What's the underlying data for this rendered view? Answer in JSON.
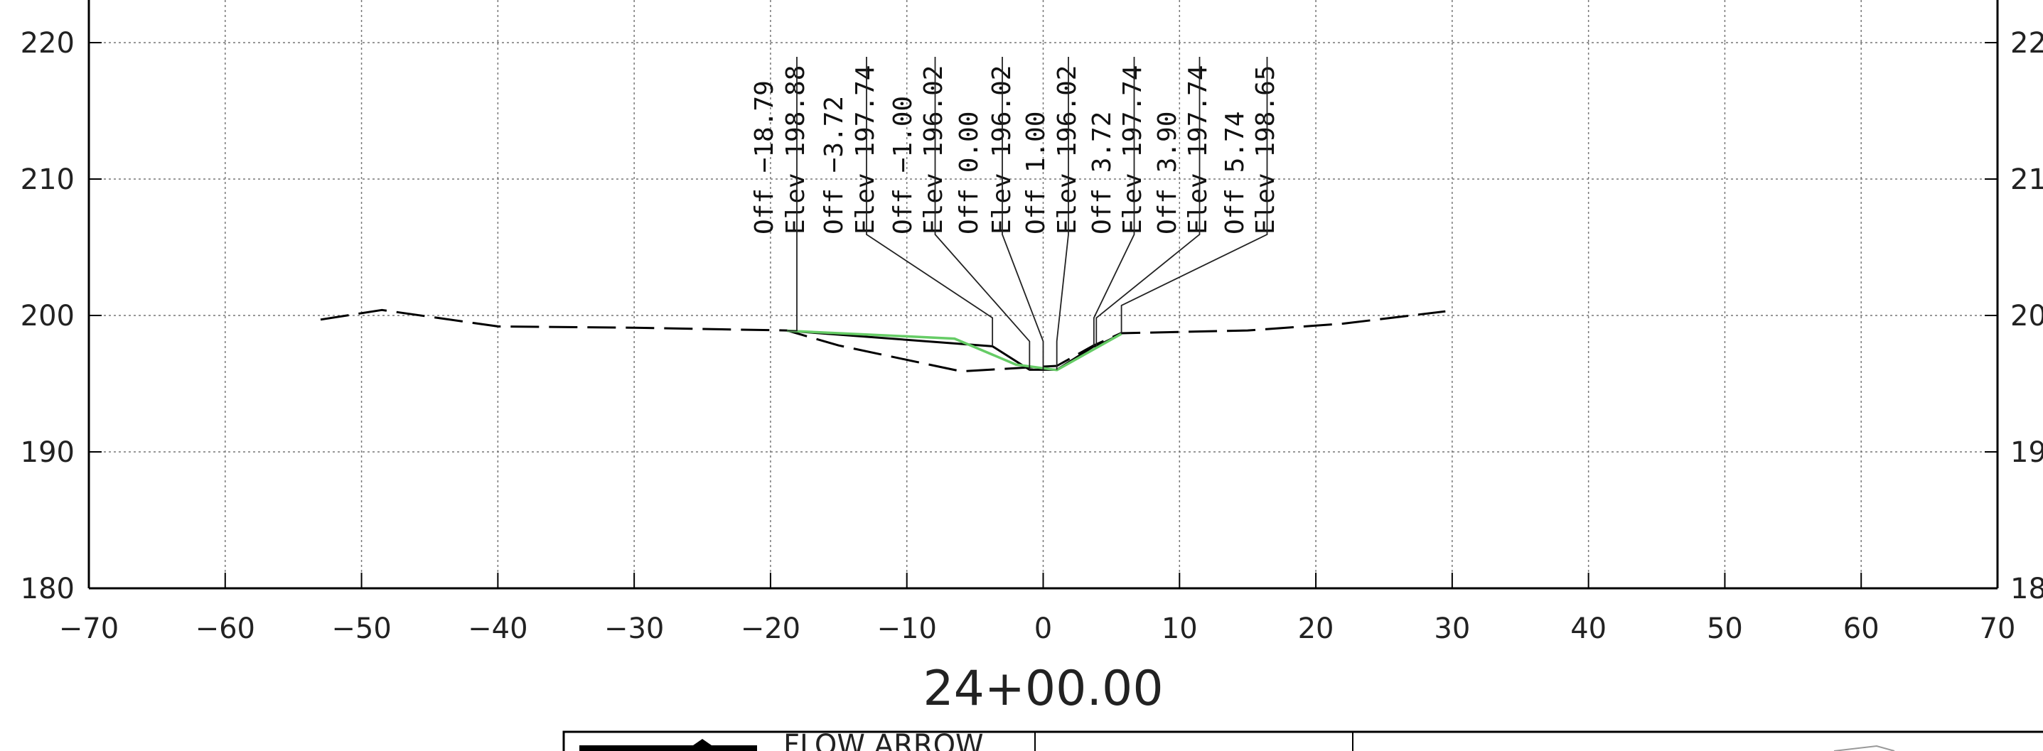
{
  "chart_data": {
    "type": "line",
    "title": "24+00.00",
    "xlabel": "",
    "ylabel": "",
    "xlim": [
      -70,
      70
    ],
    "ylim": [
      180,
      220
    ],
    "grid": true,
    "x_ticks": [
      "−70",
      "−60",
      "−50",
      "−40",
      "−30",
      "−20",
      "−10",
      "0",
      "10",
      "20",
      "30",
      "40",
      "50",
      "60",
      "70"
    ],
    "y_ticks_left": [
      "180",
      "190",
      "200",
      "210",
      "220"
    ],
    "y_ticks_right": [
      "18",
      "19",
      "20",
      "21",
      "22"
    ],
    "series": [
      {
        "style": "dashed",
        "color": "#000000",
        "points": [
          [
            -53,
            199.7
          ],
          [
            -48.5,
            200.4
          ],
          [
            -40,
            199.2
          ],
          [
            -30,
            199.1
          ],
          [
            -18.8,
            198.9
          ],
          [
            -15,
            197.8
          ],
          [
            -6,
            195.9
          ],
          [
            -1,
            196.2
          ],
          [
            1,
            196.3
          ],
          [
            3.7,
            197.8
          ],
          [
            5.7,
            198.7
          ],
          [
            15,
            198.9
          ],
          [
            22,
            199.4
          ],
          [
            29.5,
            200.3
          ]
        ]
      },
      {
        "style": "solid",
        "color": "#000000",
        "points": [
          [
            -18.79,
            198.88
          ],
          [
            -3.72,
            197.74
          ],
          [
            -1.0,
            196.02
          ],
          [
            0.0,
            196.02
          ],
          [
            1.0,
            196.02
          ],
          [
            3.72,
            197.74
          ],
          [
            3.9,
            197.74
          ],
          [
            5.74,
            198.65
          ]
        ]
      },
      {
        "style": "solid",
        "color": "#66cc66",
        "points": [
          [
            -18.79,
            198.88
          ],
          [
            -6.5,
            198.3
          ],
          [
            -2,
            196.4
          ],
          [
            1,
            196.0
          ],
          [
            5.74,
            198.65
          ]
        ]
      }
    ],
    "annotations": [
      {
        "text": "Off −18.79",
        "x": -18.79,
        "y": 198.88
      },
      {
        "text": "Elev 198.88",
        "x": -18.79,
        "y": 198.88
      },
      {
        "text": "Off −3.72",
        "x": -3.72,
        "y": 197.74
      },
      {
        "text": "Elev 197.74",
        "x": -3.72,
        "y": 197.74
      },
      {
        "text": "Off −1.00",
        "x": -1.0,
        "y": 196.02
      },
      {
        "text": "Elev 196.02",
        "x": -1.0,
        "y": 196.02
      },
      {
        "text": "Off 0.00",
        "x": 0.0,
        "y": 196.02
      },
      {
        "text": "Elev 196.02",
        "x": 0.0,
        "y": 196.02
      },
      {
        "text": "Off 1.00",
        "x": 1.0,
        "y": 196.02
      },
      {
        "text": "Elev 196.02",
        "x": 1.0,
        "y": 196.02
      },
      {
        "text": "Off 3.72",
        "x": 3.72,
        "y": 197.74
      },
      {
        "text": "Elev 197.74",
        "x": 3.72,
        "y": 197.74
      },
      {
        "text": "Off 3.90",
        "x": 3.9,
        "y": 197.74
      },
      {
        "text": "Elev 197.74",
        "x": 3.9,
        "y": 197.74
      },
      {
        "text": "Off 5.74",
        "x": 5.74,
        "y": 198.65
      },
      {
        "text": "Elev 198.65",
        "x": 5.74,
        "y": 198.65
      }
    ]
  },
  "title_block": {
    "label": "FLOW ARROW"
  }
}
